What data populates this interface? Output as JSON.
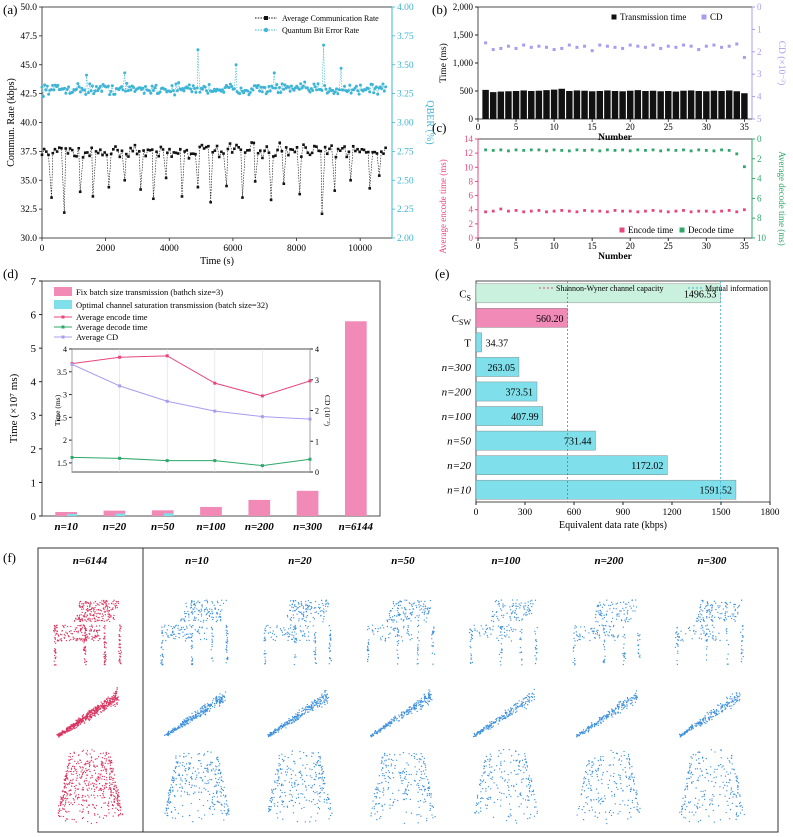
{
  "panel_labels": {
    "a": "(a)",
    "b": "(b)",
    "c": "(c)",
    "d": "(d)",
    "e": "(e)",
    "f": "(f)"
  },
  "colors": {
    "black": "#111111",
    "cyan": "#3fb5d6",
    "lavender": "#a99cf0",
    "pink": "#e8457e",
    "green": "#2ea86a",
    "barpink": "#f28ab8",
    "barcyan": "#7fdfea",
    "barmint": "#c9f1de",
    "cloudpink": "#d8355f",
    "cloudblue": "#3b8fdc"
  },
  "chart_data": [
    {
      "id": "a",
      "type": "scatter",
      "xlabel": "Time  (s)",
      "ylabel": "Commun. Rate  (kbps)",
      "y2label": "QBER  (%)",
      "xlim": [
        0,
        11000
      ],
      "xticks": [
        0,
        2000,
        4000,
        6000,
        8000,
        10000
      ],
      "ylim": [
        30.0,
        50.0
      ],
      "yticks": [
        "30.0",
        "32.5",
        "35.0",
        "37.5",
        "40.0",
        "42.5",
        "45.0",
        "47.5",
        "50.0"
      ],
      "y2lim": [
        2.0,
        4.0
      ],
      "y2ticks": [
        "2.00",
        "2.25",
        "2.50",
        "2.75",
        "3.00",
        "3.25",
        "3.50",
        "3.75",
        "4.00"
      ],
      "series": [
        {
          "name": "Average Communication Rate",
          "color": "#111111",
          "base": 37.5,
          "spread": 0.45,
          "n": 160,
          "dips": [
            [
              300,
              33.5
            ],
            [
              700,
              32.2
            ],
            [
              1200,
              34
            ],
            [
              1600,
              33.6
            ],
            [
              2100,
              34.4
            ],
            [
              2600,
              35
            ],
            [
              3100,
              34.2
            ],
            [
              3500,
              33.4
            ],
            [
              3900,
              35.2
            ],
            [
              4400,
              33.6
            ],
            [
              4900,
              34.4
            ],
            [
              5300,
              33.1
            ],
            [
              5800,
              34.5
            ],
            [
              6300,
              33.5
            ],
            [
              6700,
              34.9
            ],
            [
              7200,
              33.3
            ],
            [
              7600,
              34.7
            ],
            [
              8100,
              33.8
            ],
            [
              8800,
              32.1
            ],
            [
              9200,
              34.1
            ],
            [
              9700,
              35
            ],
            [
              10300,
              34.3
            ],
            [
              10600,
              35.4
            ]
          ]
        },
        {
          "name": "Quantum Bit Error Rate",
          "color": "#3fb5d6",
          "axis": "right",
          "base": 3.29,
          "spread": 0.035,
          "n": 260,
          "spikes": [
            [
              4900,
              3.63
            ],
            [
              8850,
              3.67
            ],
            [
              6100,
              3.5
            ],
            [
              9400,
              3.47
            ],
            [
              2600,
              3.43
            ],
            [
              1400,
              3.41
            ],
            [
              7300,
              3.43
            ]
          ]
        }
      ],
      "legend": "top-right"
    },
    {
      "id": "b",
      "type": "bar+scatter",
      "xlabel": "Number",
      "ylabel": "Time  (ms)",
      "y2label": "CD  (×10⁻³)",
      "xlim": [
        0,
        36
      ],
      "xticks": [
        0,
        5,
        10,
        15,
        20,
        25,
        30,
        35
      ],
      "ylim": [
        0,
        2000
      ],
      "yticks": [
        "0",
        "500",
        "1,000",
        "1,500",
        "2,000"
      ],
      "y2lim": [
        0,
        5
      ],
      "y2ticks": [
        "0",
        "1",
        "2",
        "3",
        "4",
        "5"
      ],
      "y2inverted": true,
      "bars": [
        520,
        480,
        490,
        495,
        500,
        510,
        500,
        505,
        515,
        525,
        540,
        500,
        510,
        505,
        495,
        500,
        510,
        500,
        495,
        505,
        515,
        500,
        505,
        495,
        500,
        490,
        505,
        510,
        500,
        495,
        505,
        500,
        510,
        495,
        460
      ],
      "cd": [
        1.6,
        1.9,
        1.85,
        1.75,
        1.85,
        1.7,
        1.8,
        1.75,
        1.8,
        1.9,
        1.85,
        1.7,
        1.8,
        1.75,
        1.95,
        1.7,
        1.75,
        1.8,
        1.85,
        1.7,
        1.75,
        1.8,
        1.7,
        1.85,
        1.75,
        1.8,
        1.7,
        1.75,
        1.9,
        1.75,
        1.7,
        1.8,
        1.75,
        1.65,
        2.25
      ],
      "legend": [
        "Transmission time",
        "CD"
      ]
    },
    {
      "id": "c",
      "type": "scatter",
      "xlabel": "Number",
      "ylabel": "Average encode time  (ms)",
      "y2label": "Average decode time  (ms)",
      "xlim": [
        0,
        36
      ],
      "xticks": [
        0,
        5,
        10,
        15,
        20,
        25,
        30,
        35
      ],
      "ylim": [
        0,
        14
      ],
      "yticks": [
        "0",
        "2",
        "4",
        "6",
        "8",
        "10",
        "12",
        "14"
      ],
      "y2lim": [
        0,
        10
      ],
      "y2ticks": [
        "0",
        "2",
        "4",
        "6",
        "8",
        "10"
      ],
      "y2inverted": true,
      "encode": [
        3.7,
        3.8,
        4.1,
        3.8,
        3.9,
        3.7,
        3.8,
        3.9,
        3.7,
        3.8,
        3.9,
        3.8,
        3.7,
        3.9,
        3.8,
        3.8,
        3.7,
        3.9,
        3.8,
        3.8,
        3.7,
        3.8,
        3.9,
        3.8,
        3.7,
        3.8,
        3.9,
        3.7,
        3.8,
        3.8,
        3.7,
        3.8,
        3.9,
        3.7,
        4.0
      ],
      "decode": [
        1.1,
        1.15,
        1.1,
        1.2,
        1.1,
        1.15,
        1.1,
        1.1,
        1.2,
        1.1,
        1.15,
        1.2,
        1.1,
        1.15,
        1.1,
        1.2,
        1.1,
        1.15,
        1.1,
        1.2,
        1.1,
        1.15,
        1.1,
        1.2,
        1.1,
        1.15,
        1.1,
        1.2,
        1.1,
        1.15,
        1.2,
        1.1,
        1.15,
        1.5,
        2.8
      ],
      "legend": [
        "Encode time",
        "Decode time"
      ]
    },
    {
      "id": "d",
      "type": "bar+line",
      "ylabel": "Time  (×10⁷ ms)",
      "ylim": [
        0,
        7
      ],
      "yticks": [
        "0",
        "1",
        "2",
        "3",
        "4",
        "5",
        "6",
        "7"
      ],
      "categories": [
        "n=10",
        "n=20",
        "n=50",
        "n=100",
        "n=200",
        "n=300",
        "n=6144"
      ],
      "series": [
        {
          "name": "Fix batch size transmission (bathch size=3)",
          "values": [
            0.12,
            0.16,
            0.17,
            0.27,
            0.48,
            0.75,
            5.8
          ]
        },
        {
          "name": "Optimal channel saturation transmission (batch size=32)",
          "values": [
            0.06,
            0.07,
            0.08,
            0,
            0,
            0,
            0
          ]
        }
      ],
      "inset": {
        "ylabel": "Time  (ms)",
        "y2label": "CD  (10⁻³)",
        "ylim": [
          1.3,
          4.0
        ],
        "yticks": [
          "1.5",
          "2",
          "2.5",
          "3",
          "3.5",
          "4"
        ],
        "y2lim": [
          0,
          4
        ],
        "y2ticks": [
          "0",
          "1",
          "2",
          "3",
          "4"
        ],
        "encode": [
          3.68,
          3.82,
          3.85,
          3.25,
          2.97,
          3.3
        ],
        "decode": [
          1.62,
          1.6,
          1.55,
          1.55,
          1.44,
          1.58
        ],
        "cd": [
          3.5,
          2.8,
          2.3,
          1.98,
          1.8,
          1.72
        ],
        "legend": [
          "Average encode time",
          "Average decode time",
          "Average CD"
        ]
      }
    },
    {
      "id": "e",
      "type": "hbar",
      "xlabel": "Equivalent data rate  (kbps)",
      "xlim": [
        0,
        1800
      ],
      "xticks": [
        "0",
        "300",
        "600",
        "900",
        "1200",
        "1500",
        "1800"
      ],
      "categories": [
        "C_S",
        "C_SW",
        "T",
        "n=300",
        "n=200",
        "n=100",
        "n=50",
        "n=20",
        "n=10"
      ],
      "values": [
        1496.53,
        560.2,
        34.37,
        263.05,
        373.51,
        407.99,
        731.44,
        1172.02,
        1591.52
      ],
      "labels": [
        "1496.53",
        "560.20",
        "34.37",
        "263.05",
        "373.51",
        "407.99",
        "731.44",
        "1172.02",
        "1591.52"
      ],
      "vlines": [
        {
          "name": "Shannon-Wyner channel capacity",
          "x": 560.2
        },
        {
          "name": "Mutual information",
          "x": 1496.53
        }
      ]
    }
  ],
  "panel_f": {
    "columns": [
      "n=6144",
      "n=10",
      "n=20",
      "n=50",
      "n=100",
      "n=200",
      "n=300"
    ]
  }
}
